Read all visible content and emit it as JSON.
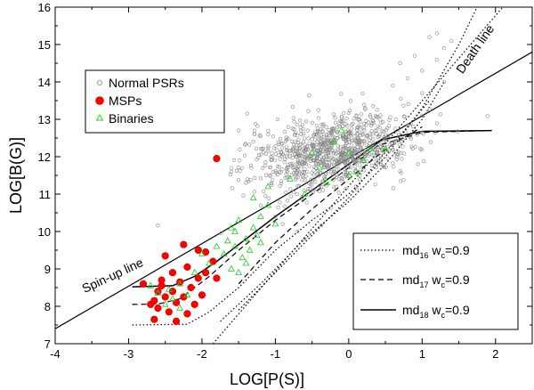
{
  "chart_data": {
    "type": "scatter",
    "title": "",
    "xlabel": "LOG[P(S)]",
    "ylabel": "LOG[B(G)]",
    "xlim": [
      -4,
      2.5
    ],
    "ylim": [
      7,
      16
    ],
    "xticks": [
      -4,
      -3,
      -2,
      -1,
      0,
      1,
      2
    ],
    "yticks": [
      7,
      8,
      9,
      10,
      11,
      12,
      13,
      14,
      15,
      16
    ],
    "grid": false,
    "legend_position": "upper-left",
    "legend": [
      {
        "label": "Normal PSRs",
        "marker": "open-circle",
        "color": "#888888"
      },
      {
        "label": "MSPs",
        "marker": "filled-circle",
        "color": "#ff0000"
      },
      {
        "label": "Binaries",
        "marker": "open-triangle",
        "color": "#22cc22"
      }
    ],
    "line_legend_position": "lower-right",
    "line_legend": [
      {
        "base": "md",
        "sub1": "16",
        "mid": " w",
        "sub2": "c",
        "tail": "=0.9",
        "style": "dotted"
      },
      {
        "base": "md",
        "sub1": "17",
        "mid": " w",
        "sub2": "c",
        "tail": "=0.9",
        "style": "dashed"
      },
      {
        "base": "md",
        "sub1": "18",
        "mid": " w",
        "sub2": "c",
        "tail": "=0.9",
        "style": "solid"
      }
    ],
    "annotations": [
      {
        "text": "Spin-up line",
        "x": -3.6,
        "y": 8.35,
        "rotate": -25
      },
      {
        "text": "Death line",
        "x": 1.55,
        "y": 14.2,
        "rotate": -55
      }
    ],
    "reference_lines": [
      {
        "name": "Spin-up line",
        "points": [
          [
            -4,
            7.4
          ],
          [
            2.5,
            14.8
          ]
        ],
        "style": "solid"
      },
      {
        "name": "Death line",
        "points": [
          [
            -1.85,
            7.0
          ],
          [
            2.1,
            16.0
          ]
        ],
        "style": "dotted"
      }
    ],
    "evolution_tracks": [
      {
        "group": "md16",
        "style": "dotted",
        "points": [
          [
            -2.95,
            7.5
          ],
          [
            -2.2,
            7.52
          ],
          [
            -1.9,
            7.85
          ],
          [
            -1.5,
            8.5
          ],
          [
            -1.0,
            9.5
          ],
          [
            -0.5,
            10.3
          ],
          [
            0.0,
            11.0
          ],
          [
            0.5,
            12.0
          ],
          [
            1.0,
            13.3
          ],
          [
            1.5,
            15.0
          ],
          [
            1.75,
            16.0
          ]
        ]
      },
      {
        "group": "md16",
        "style": "dotted",
        "points": [
          [
            -1.75,
            7.6
          ],
          [
            -1.2,
            8.6
          ],
          [
            -0.6,
            9.8
          ],
          [
            0.0,
            10.8
          ],
          [
            0.5,
            11.8
          ],
          [
            1.0,
            13.0
          ],
          [
            1.3,
            14.0
          ]
        ]
      },
      {
        "group": "md16",
        "style": "dotted",
        "points": [
          [
            -1.5,
            7.9
          ],
          [
            -1.0,
            8.9
          ],
          [
            -0.5,
            9.9
          ],
          [
            0.0,
            10.9
          ],
          [
            0.4,
            11.9
          ],
          [
            0.8,
            12.8
          ],
          [
            1.1,
            13.5
          ]
        ]
      },
      {
        "group": "md17",
        "style": "dashed",
        "points": [
          [
            -2.95,
            8.05
          ],
          [
            -2.6,
            8.06
          ],
          [
            -2.3,
            8.2
          ],
          [
            -1.9,
            8.8
          ],
          [
            -1.5,
            9.5
          ],
          [
            -1.0,
            10.3
          ],
          [
            -0.5,
            11.0
          ],
          [
            0.0,
            11.7
          ],
          [
            0.4,
            12.3
          ],
          [
            1.0,
            12.65
          ],
          [
            1.9,
            12.7
          ]
        ]
      },
      {
        "group": "md17",
        "style": "dashed",
        "points": [
          [
            -1.5,
            8.6
          ],
          [
            -1.0,
            9.7
          ],
          [
            -0.5,
            10.6
          ],
          [
            0.0,
            11.4
          ],
          [
            0.5,
            12.2
          ],
          [
            1.0,
            12.8
          ]
        ]
      },
      {
        "group": "md18",
        "style": "solid",
        "points": [
          [
            -2.95,
            8.52
          ],
          [
            -2.4,
            8.55
          ],
          [
            -2.1,
            8.8
          ],
          [
            -1.8,
            9.2
          ],
          [
            -1.4,
            9.8
          ],
          [
            -1.0,
            10.4
          ],
          [
            -0.5,
            11.1
          ],
          [
            0.0,
            11.8
          ],
          [
            0.45,
            12.45
          ],
          [
            1.0,
            12.68
          ],
          [
            1.95,
            12.7
          ]
        ]
      }
    ],
    "series": [
      {
        "name": "Normal PSRs",
        "marker": "open-circle",
        "color": "#888888",
        "cluster": {
          "center": [
            -0.25,
            12.15
          ],
          "spread": [
            0.55,
            0.6
          ],
          "count": 900,
          "seed": 7
        },
        "extra_points": [
          [
            -1.2,
            10.7
          ],
          [
            -1.0,
            10.4
          ],
          [
            -0.9,
            10.2
          ],
          [
            -0.7,
            10.0
          ],
          [
            -0.6,
            9.8
          ],
          [
            -1.4,
            11.3
          ],
          [
            -1.6,
            11.6
          ],
          [
            -1.3,
            12.4
          ],
          [
            -1.5,
            12.7
          ],
          [
            0.6,
            13.9
          ],
          [
            0.8,
            14.1
          ],
          [
            1.0,
            14.3
          ],
          [
            1.2,
            14.6
          ],
          [
            1.1,
            15.2
          ],
          [
            1.3,
            14.9
          ],
          [
            0.9,
            14.7
          ],
          [
            1.5,
            14.4
          ],
          [
            1.4,
            15.1
          ],
          [
            0.7,
            14.5
          ],
          [
            1.2,
            15.3
          ],
          [
            1.0,
            13.7
          ],
          [
            1.3,
            14.0
          ]
        ]
      },
      {
        "name": "MSPs",
        "marker": "filled-circle",
        "color": "#ff0000",
        "points": [
          [
            -1.8,
            11.95
          ],
          [
            -2.8,
            8.6
          ],
          [
            -2.5,
            9.35
          ],
          [
            -2.25,
            9.65
          ],
          [
            -2.05,
            9.5
          ],
          [
            -1.85,
            9.2
          ],
          [
            -1.95,
            9.45
          ],
          [
            -2.2,
            9.05
          ],
          [
            -2.4,
            8.9
          ],
          [
            -2.55,
            8.55
          ],
          [
            -2.65,
            8.15
          ],
          [
            -2.6,
            7.95
          ],
          [
            -2.45,
            7.85
          ],
          [
            -2.35,
            8.1
          ],
          [
            -2.25,
            8.25
          ],
          [
            -2.15,
            8.5
          ],
          [
            -2.05,
            8.75
          ],
          [
            -1.95,
            8.9
          ],
          [
            -2.5,
            8.25
          ],
          [
            -2.7,
            8.05
          ],
          [
            -2.3,
            8.65
          ],
          [
            -2.4,
            8.4
          ],
          [
            -2.6,
            8.4
          ],
          [
            -2.65,
            7.65
          ],
          [
            -2.2,
            7.8
          ],
          [
            -2.1,
            8.05
          ],
          [
            -2.35,
            7.6
          ],
          [
            -1.8,
            8.75
          ],
          [
            -2.0,
            8.3
          ],
          [
            -2.55,
            8.7
          ]
        ]
      },
      {
        "name": "Binaries",
        "marker": "open-triangle",
        "color": "#22cc22",
        "points": [
          [
            -1.6,
            10.1
          ],
          [
            -1.5,
            10.3
          ],
          [
            -1.4,
            9.8
          ],
          [
            -1.3,
            10.1
          ],
          [
            -1.55,
            9.6
          ],
          [
            -1.45,
            9.3
          ],
          [
            -1.35,
            9.5
          ],
          [
            -1.25,
            9.9
          ],
          [
            -1.6,
            9.0
          ],
          [
            -1.5,
            8.9
          ],
          [
            -1.4,
            9.15
          ],
          [
            -1.7,
            9.4
          ],
          [
            -1.2,
            10.4
          ],
          [
            -1.1,
            10.7
          ],
          [
            -1.0,
            10.2
          ],
          [
            -1.2,
            9.7
          ],
          [
            -1.55,
            10.0
          ],
          [
            -1.65,
            9.75
          ],
          [
            -2.0,
            9.4
          ],
          [
            -1.9,
            9.15
          ],
          [
            -2.1,
            8.9
          ],
          [
            -2.3,
            8.6
          ],
          [
            -2.45,
            8.45
          ],
          [
            -2.6,
            8.35
          ],
          [
            -2.5,
            8.05
          ],
          [
            -2.4,
            8.2
          ],
          [
            -2.2,
            8.3
          ],
          [
            -2.7,
            8.55
          ],
          [
            -2.3,
            7.95
          ],
          [
            -1.8,
            9.6
          ],
          [
            -0.6,
            11.0
          ],
          [
            -0.4,
            11.7
          ],
          [
            -0.2,
            12.4
          ],
          [
            0.0,
            12.1
          ],
          [
            0.1,
            11.6
          ],
          [
            0.3,
            12.2
          ],
          [
            -0.3,
            11.3
          ],
          [
            0.2,
            11.9
          ],
          [
            -0.1,
            12.7
          ],
          [
            0.5,
            12.2
          ],
          [
            -0.5,
            12.1
          ],
          [
            -1.1,
            11.2
          ],
          [
            -1.3,
            10.9
          ],
          [
            -0.8,
            11.4
          ],
          [
            0.0,
            11.5
          ]
        ]
      }
    ]
  }
}
